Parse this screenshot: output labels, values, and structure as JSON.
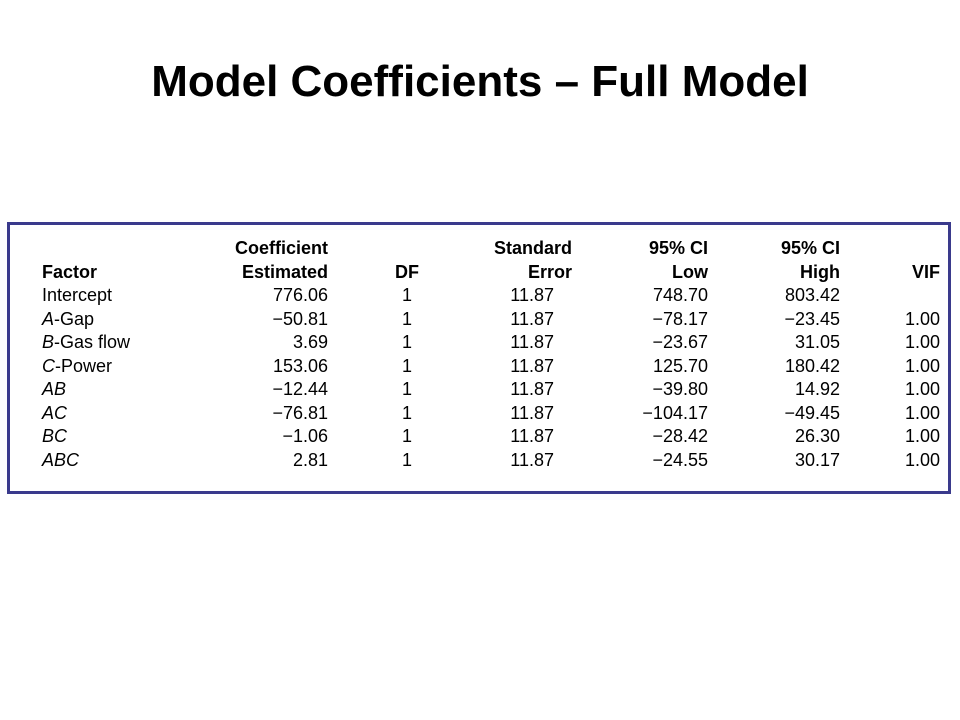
{
  "title": "Model Coefficients – Full Model",
  "table": {
    "header_line1": {
      "factor": "",
      "coefficient": "Coefficient",
      "df": "",
      "std_error": "Standard",
      "ci_low": "95% CI",
      "ci_high": "95% CI",
      "vif": ""
    },
    "header_line2": {
      "factor": "Factor",
      "coefficient": "Estimated",
      "df": "DF",
      "std_error": "Error",
      "ci_low": "Low",
      "ci_high": "High",
      "vif": "VIF"
    },
    "rows": [
      {
        "factor_prefix": "",
        "factor_suffix": "Intercept",
        "coefficient": "776.06",
        "df": "1",
        "std_error": "11.87",
        "ci_low": "748.70",
        "ci_high": "803.42",
        "vif": ""
      },
      {
        "factor_prefix": "A",
        "factor_suffix": "-Gap",
        "coefficient": "−50.81",
        "df": "1",
        "std_error": "11.87",
        "ci_low": "−78.17",
        "ci_high": "−23.45",
        "vif": "1.00"
      },
      {
        "factor_prefix": "B",
        "factor_suffix": "-Gas flow",
        "coefficient": "3.69",
        "df": "1",
        "std_error": "11.87",
        "ci_low": "−23.67",
        "ci_high": "31.05",
        "vif": "1.00"
      },
      {
        "factor_prefix": "C",
        "factor_suffix": "-Power",
        "coefficient": "153.06",
        "df": "1",
        "std_error": "11.87",
        "ci_low": "125.70",
        "ci_high": "180.42",
        "vif": "1.00"
      },
      {
        "factor_prefix": "AB",
        "factor_suffix": "",
        "coefficient": "−12.44",
        "df": "1",
        "std_error": "11.87",
        "ci_low": "−39.80",
        "ci_high": "14.92",
        "vif": "1.00"
      },
      {
        "factor_prefix": "AC",
        "factor_suffix": "",
        "coefficient": "−76.81",
        "df": "1",
        "std_error": "11.87",
        "ci_low": "−104.17",
        "ci_high": "−49.45",
        "vif": "1.00"
      },
      {
        "factor_prefix": "BC",
        "factor_suffix": "",
        "coefficient": "−1.06",
        "df": "1",
        "std_error": "11.87",
        "ci_low": "−28.42",
        "ci_high": "26.30",
        "vif": "1.00"
      },
      {
        "factor_prefix": "ABC",
        "factor_suffix": "",
        "coefficient": "2.81",
        "df": "1",
        "std_error": "11.87",
        "ci_low": "−24.55",
        "ci_high": "30.17",
        "vif": "1.00"
      }
    ]
  },
  "colors": {
    "frame_border": "#3a3a8c",
    "text": "#000000",
    "background": "#ffffff"
  }
}
